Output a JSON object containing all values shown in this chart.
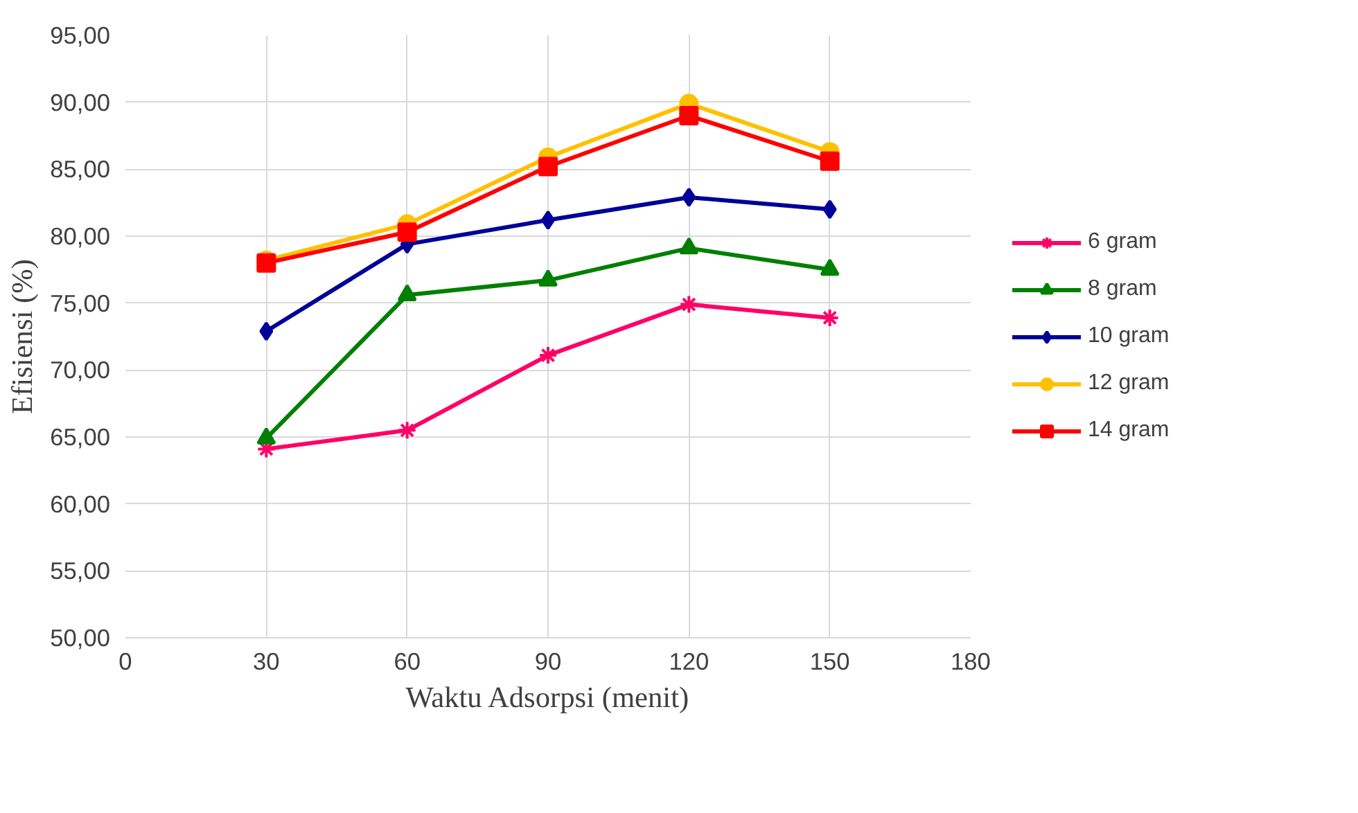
{
  "chart_data": {
    "type": "line",
    "xlabel": "Waktu Adsorpsi (menit)",
    "ylabel": "Efisiensi (%)",
    "x": [
      30,
      60,
      90,
      120,
      150
    ],
    "xlim": [
      0,
      180
    ],
    "xticks": [
      0,
      30,
      60,
      90,
      120,
      150,
      180
    ],
    "ylim": [
      50,
      95
    ],
    "yticks": [
      {
        "value": 50,
        "label": "50,00"
      },
      {
        "value": 55,
        "label": "55,00"
      },
      {
        "value": 60,
        "label": "60,00"
      },
      {
        "value": 65,
        "label": "65,00"
      },
      {
        "value": 70,
        "label": "70,00"
      },
      {
        "value": 75,
        "label": "75,00"
      },
      {
        "value": 80,
        "label": "80,00"
      },
      {
        "value": 85,
        "label": "85,00"
      },
      {
        "value": 90,
        "label": "90,00"
      },
      {
        "value": 95,
        "label": "95,00"
      }
    ],
    "grid": true,
    "legend": "right",
    "line_style": "solid",
    "series": [
      {
        "name": "6 gram",
        "color": "#ff0066",
        "marker": "cross",
        "values": [
          64.1,
          65.5,
          71.1,
          74.9,
          73.9
        ]
      },
      {
        "name": "8 gram",
        "color": "#008000",
        "marker": "triangle",
        "values": [
          64.9,
          75.6,
          76.7,
          79.1,
          77.5
        ]
      },
      {
        "name": "10 gram",
        "color": "#000099",
        "marker": "diamond",
        "values": [
          72.9,
          79.4,
          81.2,
          82.9,
          82.0
        ]
      },
      {
        "name": "12 gram",
        "color": "#ffc000",
        "marker": "circle",
        "values": [
          78.2,
          80.9,
          85.9,
          89.9,
          86.3
        ]
      },
      {
        "name": "14 gram",
        "color": "#ff0000",
        "marker": "square",
        "values": [
          78.0,
          80.3,
          85.2,
          89.0,
          85.6
        ]
      }
    ]
  }
}
